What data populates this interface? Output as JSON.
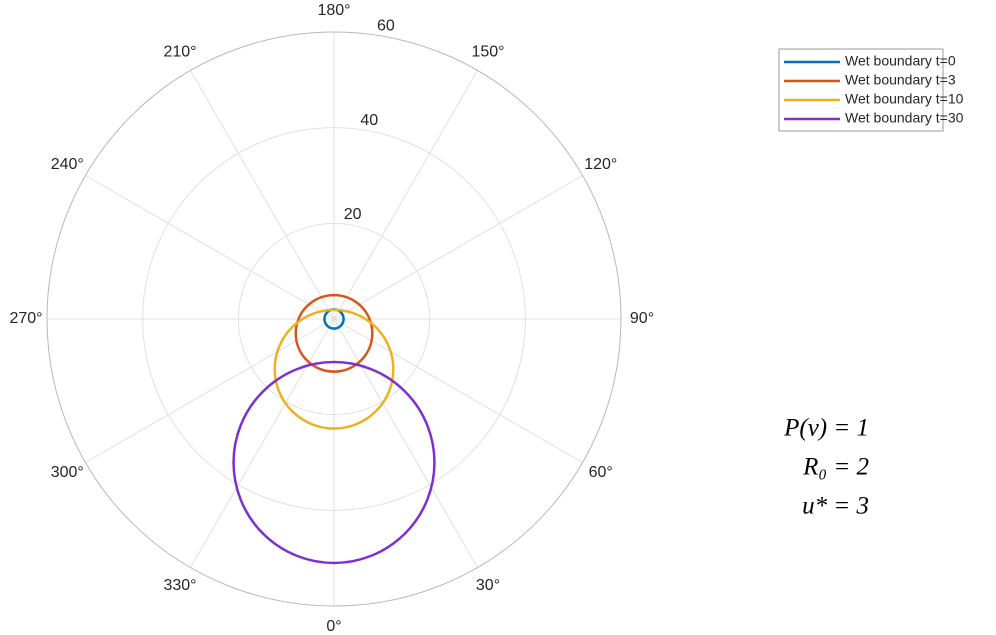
{
  "chart_data": {
    "type": "polar",
    "thetaticks": [
      {
        "value": 0,
        "label": "0°"
      },
      {
        "value": 30,
        "label": "30°"
      },
      {
        "value": 60,
        "label": "60°"
      },
      {
        "value": 90,
        "label": "90°"
      },
      {
        "value": 120,
        "label": "120°"
      },
      {
        "value": 150,
        "label": "150°"
      },
      {
        "value": 180,
        "label": "180°"
      },
      {
        "value": 210,
        "label": "210°"
      },
      {
        "value": 240,
        "label": "240°"
      },
      {
        "value": 270,
        "label": "270°"
      },
      {
        "value": 300,
        "label": "300°"
      },
      {
        "value": 330,
        "label": "330°"
      }
    ],
    "rlim": [
      0,
      60
    ],
    "rticks": [
      20,
      40,
      60
    ],
    "rtick_angle": 170,
    "grid": true,
    "series": [
      {
        "name": "Wet boundary t=0",
        "color": "#0072BD",
        "center_theta": 0,
        "center_r": 0,
        "radius": 2
      },
      {
        "name": "Wet boundary t=3",
        "color": "#D95319",
        "center_theta": 0,
        "center_r": 3,
        "radius": 8
      },
      {
        "name": "Wet boundary t=10",
        "color": "#EDB120",
        "center_theta": 0,
        "center_r": 10.5,
        "radius": 12.4
      },
      {
        "name": "Wet boundary t=30",
        "color": "#7E2FD0",
        "center_theta": 0,
        "center_r": 30,
        "radius": 21
      }
    ],
    "legend": "northeast",
    "annotations": [
      "P(v) = 1",
      "R₀ = 2",
      "u* = 3"
    ]
  }
}
